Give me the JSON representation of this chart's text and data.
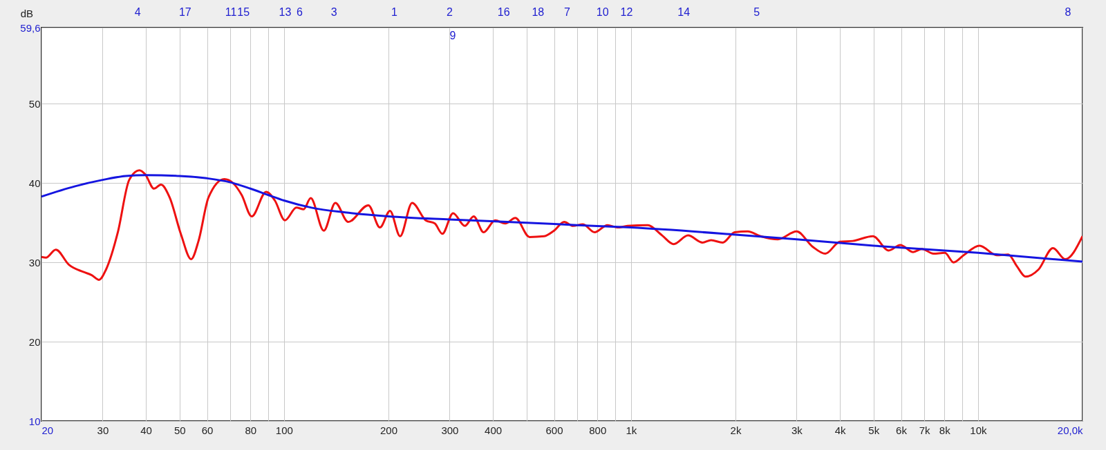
{
  "chart_data": {
    "type": "line",
    "ylabel": "dB",
    "log": "x",
    "grid": true,
    "line_style": "solid",
    "xlim": [
      20,
      20000
    ],
    "ylim": [
      10,
      59.6
    ],
    "xticks": [
      20,
      30,
      40,
      50,
      60,
      {
        "value": 70,
        "label": null
      },
      80,
      {
        "value": 90,
        "label": null
      },
      100,
      200,
      300,
      400,
      {
        "value": 500,
        "label": null
      },
      600,
      {
        "value": 700,
        "label": null
      },
      800,
      {
        "value": 900,
        "label": null
      },
      {
        "value": 1000,
        "label": "1k"
      },
      {
        "value": 2000,
        "label": "2k"
      },
      {
        "value": 3000,
        "label": "3k"
      },
      {
        "value": 4000,
        "label": "4k"
      },
      {
        "value": 5000,
        "label": "5k"
      },
      {
        "value": 6000,
        "label": "6k"
      },
      {
        "value": 7000,
        "label": "7k"
      },
      {
        "value": 8000,
        "label": "8k"
      },
      {
        "value": 9000,
        "label": null
      },
      {
        "value": 10000,
        "label": "10k"
      },
      {
        "value": 20000,
        "label": "20,0k"
      }
    ],
    "yticks": [
      10,
      20,
      30,
      40,
      50,
      {
        "value": 59.6,
        "label": "59,6"
      }
    ],
    "annotations": [
      "4",
      "17",
      "11",
      "15",
      "13",
      "6",
      "3",
      "1",
      "2",
      "9",
      "16",
      "18",
      "7",
      "10",
      "12",
      "14",
      "5",
      "8"
    ],
    "series": [
      {
        "color": "#ee1111",
        "x": [
          20,
          20.6,
          22,
          24,
          26.4,
          27.9,
          29.3,
          30.7,
          33.2,
          35.8,
          38.3,
          39.8,
          42.2,
          44.2,
          46.8,
          50.5,
          54,
          56.7,
          60.6,
          67.3,
          71.3,
          75.5,
          80.7,
          88.8,
          94.1,
          100.6,
          108.6,
          113.9,
          119.4,
          130.2,
          140.6,
          153.1,
          175,
          189,
          202,
          216,
          234,
          256,
          272,
          286,
          307,
          332,
          352,
          376,
          406,
          434,
          464,
          510,
          562,
          600,
          642,
          680,
          727,
          785,
          855,
          914,
          977,
          1117,
          1229,
          1327,
          1460,
          1607,
          1701,
          1837,
          1989,
          2168,
          2362,
          2650,
          3000,
          3332,
          3631,
          3996,
          4354,
          4978,
          5528,
          5971,
          6504,
          6888,
          7438,
          8026,
          8500,
          9092,
          10098,
          11324,
          12224,
          12946,
          13710,
          14938,
          16438,
          17848,
          20000
        ],
        "values": [
          30.7,
          30.6,
          31.6,
          29.7,
          28.8,
          28.4,
          27.8,
          29.1,
          33.8,
          40.4,
          41.6,
          41.1,
          39.3,
          39.8,
          38.2,
          33.5,
          30.4,
          32.7,
          38.2,
          40.5,
          40.0,
          38.5,
          35.8,
          38.9,
          37.8,
          35.3,
          36.9,
          36.7,
          38.1,
          34.0,
          37.5,
          35.1,
          37.2,
          34.4,
          36.5,
          33.3,
          37.5,
          35.3,
          34.9,
          33.6,
          36.2,
          34.6,
          35.8,
          33.8,
          35.3,
          34.9,
          35.6,
          33.2,
          33.3,
          34.0,
          35.1,
          34.6,
          34.8,
          33.8,
          34.7,
          34.4,
          34.6,
          34.7,
          33.4,
          32.3,
          33.4,
          32.5,
          32.8,
          32.5,
          33.8,
          33.9,
          33.3,
          32.9,
          33.9,
          32.0,
          31.1,
          32.6,
          32.7,
          33.3,
          31.5,
          32.2,
          31.3,
          31.7,
          31.1,
          31.2,
          30.0,
          30.9,
          32.1,
          30.9,
          31.0,
          29.5,
          28.2,
          29.1,
          31.8,
          30.4,
          33.3
        ]
      },
      {
        "color": "#1515e0",
        "x": [
          20,
          25,
          30,
          35,
          40,
          50,
          60,
          70,
          80,
          90,
          100,
          120,
          150,
          200,
          300,
          500,
          700,
          1000,
          2000,
          3000,
          5000,
          10000,
          20000
        ],
        "values": [
          38.3,
          39.6,
          40.4,
          40.9,
          41.0,
          40.9,
          40.6,
          40.1,
          39.3,
          38.5,
          37.8,
          36.9,
          36.3,
          35.8,
          35.4,
          35.0,
          34.7,
          34.4,
          33.5,
          32.9,
          32.1,
          31.2,
          30.1
        ]
      }
    ]
  }
}
